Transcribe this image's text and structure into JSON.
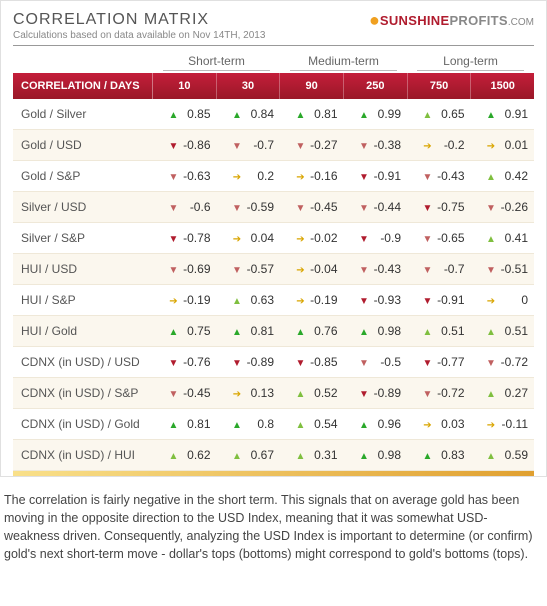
{
  "header": {
    "title": "CORRELATION MATRIX",
    "subtitle": "Calculations based on data available on Nov 14TH, 2013",
    "logo_sunshine": "SUNSHINE",
    "logo_profits": "PROFITS",
    "logo_com": ".COM"
  },
  "terms": [
    {
      "label": "Short-term",
      "span": 2
    },
    {
      "label": "Medium-term",
      "span": 2
    },
    {
      "label": "Long-term",
      "span": 2
    }
  ],
  "row_header_label": "CORRELATION / DAYS",
  "columns": [
    "10",
    "30",
    "90",
    "250",
    "750",
    "1500"
  ],
  "arrow_colors": {
    "up_strong": "#2aa82a",
    "up_weak": "#7fbf3f",
    "flat": "#d9a500",
    "down_weak": "#c06060",
    "down_strong": "#b01c2e"
  },
  "rows": [
    {
      "label": "Gold / Silver",
      "cells": [
        {
          "v": "0.85",
          "a": "up_strong"
        },
        {
          "v": "0.84",
          "a": "up_strong"
        },
        {
          "v": "0.81",
          "a": "up_strong"
        },
        {
          "v": "0.99",
          "a": "up_strong"
        },
        {
          "v": "0.65",
          "a": "up_weak"
        },
        {
          "v": "0.91",
          "a": "up_strong"
        }
      ]
    },
    {
      "label": "Gold / USD",
      "cells": [
        {
          "v": "-0.86",
          "a": "down_strong"
        },
        {
          "v": "-0.7",
          "a": "down_weak"
        },
        {
          "v": "-0.27",
          "a": "down_weak"
        },
        {
          "v": "-0.38",
          "a": "down_weak"
        },
        {
          "v": "-0.2",
          "a": "flat"
        },
        {
          "v": "0.01",
          "a": "flat"
        }
      ]
    },
    {
      "label": "Gold / S&P",
      "cells": [
        {
          "v": "-0.63",
          "a": "down_weak"
        },
        {
          "v": "0.2",
          "a": "flat"
        },
        {
          "v": "-0.16",
          "a": "flat"
        },
        {
          "v": "-0.91",
          "a": "down_strong"
        },
        {
          "v": "-0.43",
          "a": "down_weak"
        },
        {
          "v": "0.42",
          "a": "up_weak"
        }
      ]
    },
    {
      "label": "Silver / USD",
      "cells": [
        {
          "v": "-0.6",
          "a": "down_weak"
        },
        {
          "v": "-0.59",
          "a": "down_weak"
        },
        {
          "v": "-0.45",
          "a": "down_weak"
        },
        {
          "v": "-0.44",
          "a": "down_weak"
        },
        {
          "v": "-0.75",
          "a": "down_strong"
        },
        {
          "v": "-0.26",
          "a": "down_weak"
        }
      ]
    },
    {
      "label": "Silver / S&P",
      "cells": [
        {
          "v": "-0.78",
          "a": "down_strong"
        },
        {
          "v": "0.04",
          "a": "flat"
        },
        {
          "v": "-0.02",
          "a": "flat"
        },
        {
          "v": "-0.9",
          "a": "down_strong"
        },
        {
          "v": "-0.65",
          "a": "down_weak"
        },
        {
          "v": "0.41",
          "a": "up_weak"
        }
      ]
    },
    {
      "label": "HUI / USD",
      "cells": [
        {
          "v": "-0.69",
          "a": "down_weak"
        },
        {
          "v": "-0.57",
          "a": "down_weak"
        },
        {
          "v": "-0.04",
          "a": "flat"
        },
        {
          "v": "-0.43",
          "a": "down_weak"
        },
        {
          "v": "-0.7",
          "a": "down_weak"
        },
        {
          "v": "-0.51",
          "a": "down_weak"
        }
      ]
    },
    {
      "label": "HUI / S&P",
      "cells": [
        {
          "v": "-0.19",
          "a": "flat"
        },
        {
          "v": "0.63",
          "a": "up_weak"
        },
        {
          "v": "-0.19",
          "a": "flat"
        },
        {
          "v": "-0.93",
          "a": "down_strong"
        },
        {
          "v": "-0.91",
          "a": "down_strong"
        },
        {
          "v": "0",
          "a": "flat"
        }
      ]
    },
    {
      "label": "HUI / Gold",
      "cells": [
        {
          "v": "0.75",
          "a": "up_strong"
        },
        {
          "v": "0.81",
          "a": "up_strong"
        },
        {
          "v": "0.76",
          "a": "up_strong"
        },
        {
          "v": "0.98",
          "a": "up_strong"
        },
        {
          "v": "0.51",
          "a": "up_weak"
        },
        {
          "v": "0.51",
          "a": "up_weak"
        }
      ]
    },
    {
      "label": "CDNX (in USD) / USD",
      "cells": [
        {
          "v": "-0.76",
          "a": "down_strong"
        },
        {
          "v": "-0.89",
          "a": "down_strong"
        },
        {
          "v": "-0.85",
          "a": "down_strong"
        },
        {
          "v": "-0.5",
          "a": "down_weak"
        },
        {
          "v": "-0.77",
          "a": "down_strong"
        },
        {
          "v": "-0.72",
          "a": "down_weak"
        }
      ]
    },
    {
      "label": "CDNX (in USD) / S&P",
      "cells": [
        {
          "v": "-0.45",
          "a": "down_weak"
        },
        {
          "v": "0.13",
          "a": "flat"
        },
        {
          "v": "0.52",
          "a": "up_weak"
        },
        {
          "v": "-0.89",
          "a": "down_strong"
        },
        {
          "v": "-0.72",
          "a": "down_weak"
        },
        {
          "v": "0.27",
          "a": "up_weak"
        }
      ]
    },
    {
      "label": "CDNX (in USD) / Gold",
      "cells": [
        {
          "v": "0.81",
          "a": "up_strong"
        },
        {
          "v": "0.8",
          "a": "up_strong"
        },
        {
          "v": "0.54",
          "a": "up_weak"
        },
        {
          "v": "0.96",
          "a": "up_strong"
        },
        {
          "v": "0.03",
          "a": "flat"
        },
        {
          "v": "-0.11",
          "a": "flat"
        }
      ]
    },
    {
      "label": "CDNX (in USD) / HUI",
      "cells": [
        {
          "v": "0.62",
          "a": "up_weak"
        },
        {
          "v": "0.67",
          "a": "up_weak"
        },
        {
          "v": "0.31",
          "a": "up_weak"
        },
        {
          "v": "0.98",
          "a": "up_strong"
        },
        {
          "v": "0.83",
          "a": "up_strong"
        },
        {
          "v": "0.59",
          "a": "up_weak"
        }
      ]
    }
  ],
  "caption": "The correlation is fairly negative in the short term. This signals that on average gold has been moving in the opposite direction to the USD Index, meaning that it was somewhat USD-weakness driven. Consequently, analyzing the USD Index is important to determine (or confirm) gold's next short-term move - dollar's tops (bottoms) might correspond to gold's bottoms (tops)."
}
